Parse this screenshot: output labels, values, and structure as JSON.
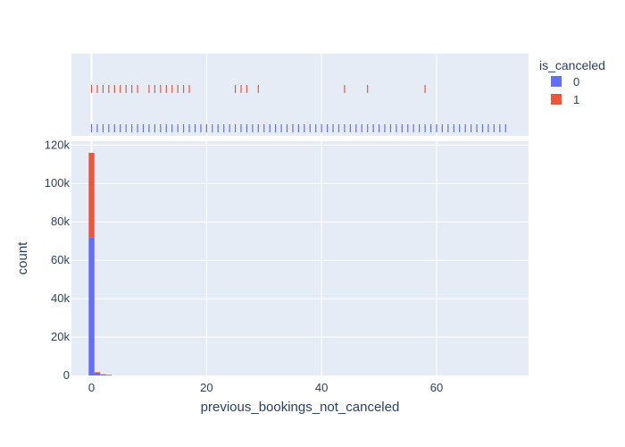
{
  "chart_data": {
    "type": "histogram",
    "x_title": "previous_bookings_not_canceled",
    "y_title": "count",
    "legend": {
      "title": "is_canceled",
      "placement": "right"
    },
    "barmode": "stack",
    "xlim": [
      -3.5,
      76
    ],
    "ylim": [
      0,
      122000
    ],
    "x_ticks": [
      0,
      20,
      40,
      60
    ],
    "y_ticks": [
      {
        "value": 0,
        "label": "0"
      },
      {
        "value": 20000,
        "label": "20k"
      },
      {
        "value": 40000,
        "label": "40k"
      },
      {
        "value": 60000,
        "label": "60k"
      },
      {
        "value": 80000,
        "label": "80k"
      },
      {
        "value": 100000,
        "label": "100k"
      },
      {
        "value": 120000,
        "label": "120k"
      }
    ],
    "bin_size": 1,
    "grid": true,
    "series": [
      {
        "name": "0",
        "color": "#636efa",
        "bins": [
          {
            "x": 0,
            "count": 72000
          },
          {
            "x": 1,
            "count": 1500
          },
          {
            "x": 2,
            "count": 500
          },
          {
            "x": 3,
            "count": 300
          }
        ],
        "rug_values": [
          0,
          1,
          2,
          3,
          4,
          5,
          6,
          7,
          8,
          9,
          10,
          11,
          12,
          13,
          14,
          15,
          16,
          17,
          18,
          19,
          20,
          21,
          22,
          23,
          24,
          25,
          26,
          27,
          28,
          29,
          30,
          31,
          32,
          33,
          34,
          35,
          36,
          37,
          38,
          39,
          40,
          41,
          42,
          43,
          44,
          45,
          46,
          47,
          48,
          49,
          50,
          51,
          52,
          53,
          54,
          55,
          56,
          57,
          58,
          59,
          60,
          61,
          62,
          63,
          64,
          65,
          66,
          67,
          68,
          69,
          70,
          71,
          72
        ]
      },
      {
        "name": "1",
        "color": "#ef553b",
        "bins": [
          {
            "x": 0,
            "count": 44000
          },
          {
            "x": 1,
            "count": 200
          },
          {
            "x": 2,
            "count": 100
          }
        ],
        "rug_values": [
          0,
          1,
          2,
          3,
          4,
          5,
          6,
          7,
          8,
          10,
          11,
          12,
          13,
          14,
          15,
          16,
          17,
          25,
          26,
          27,
          29,
          44,
          48,
          58
        ]
      }
    ]
  }
}
